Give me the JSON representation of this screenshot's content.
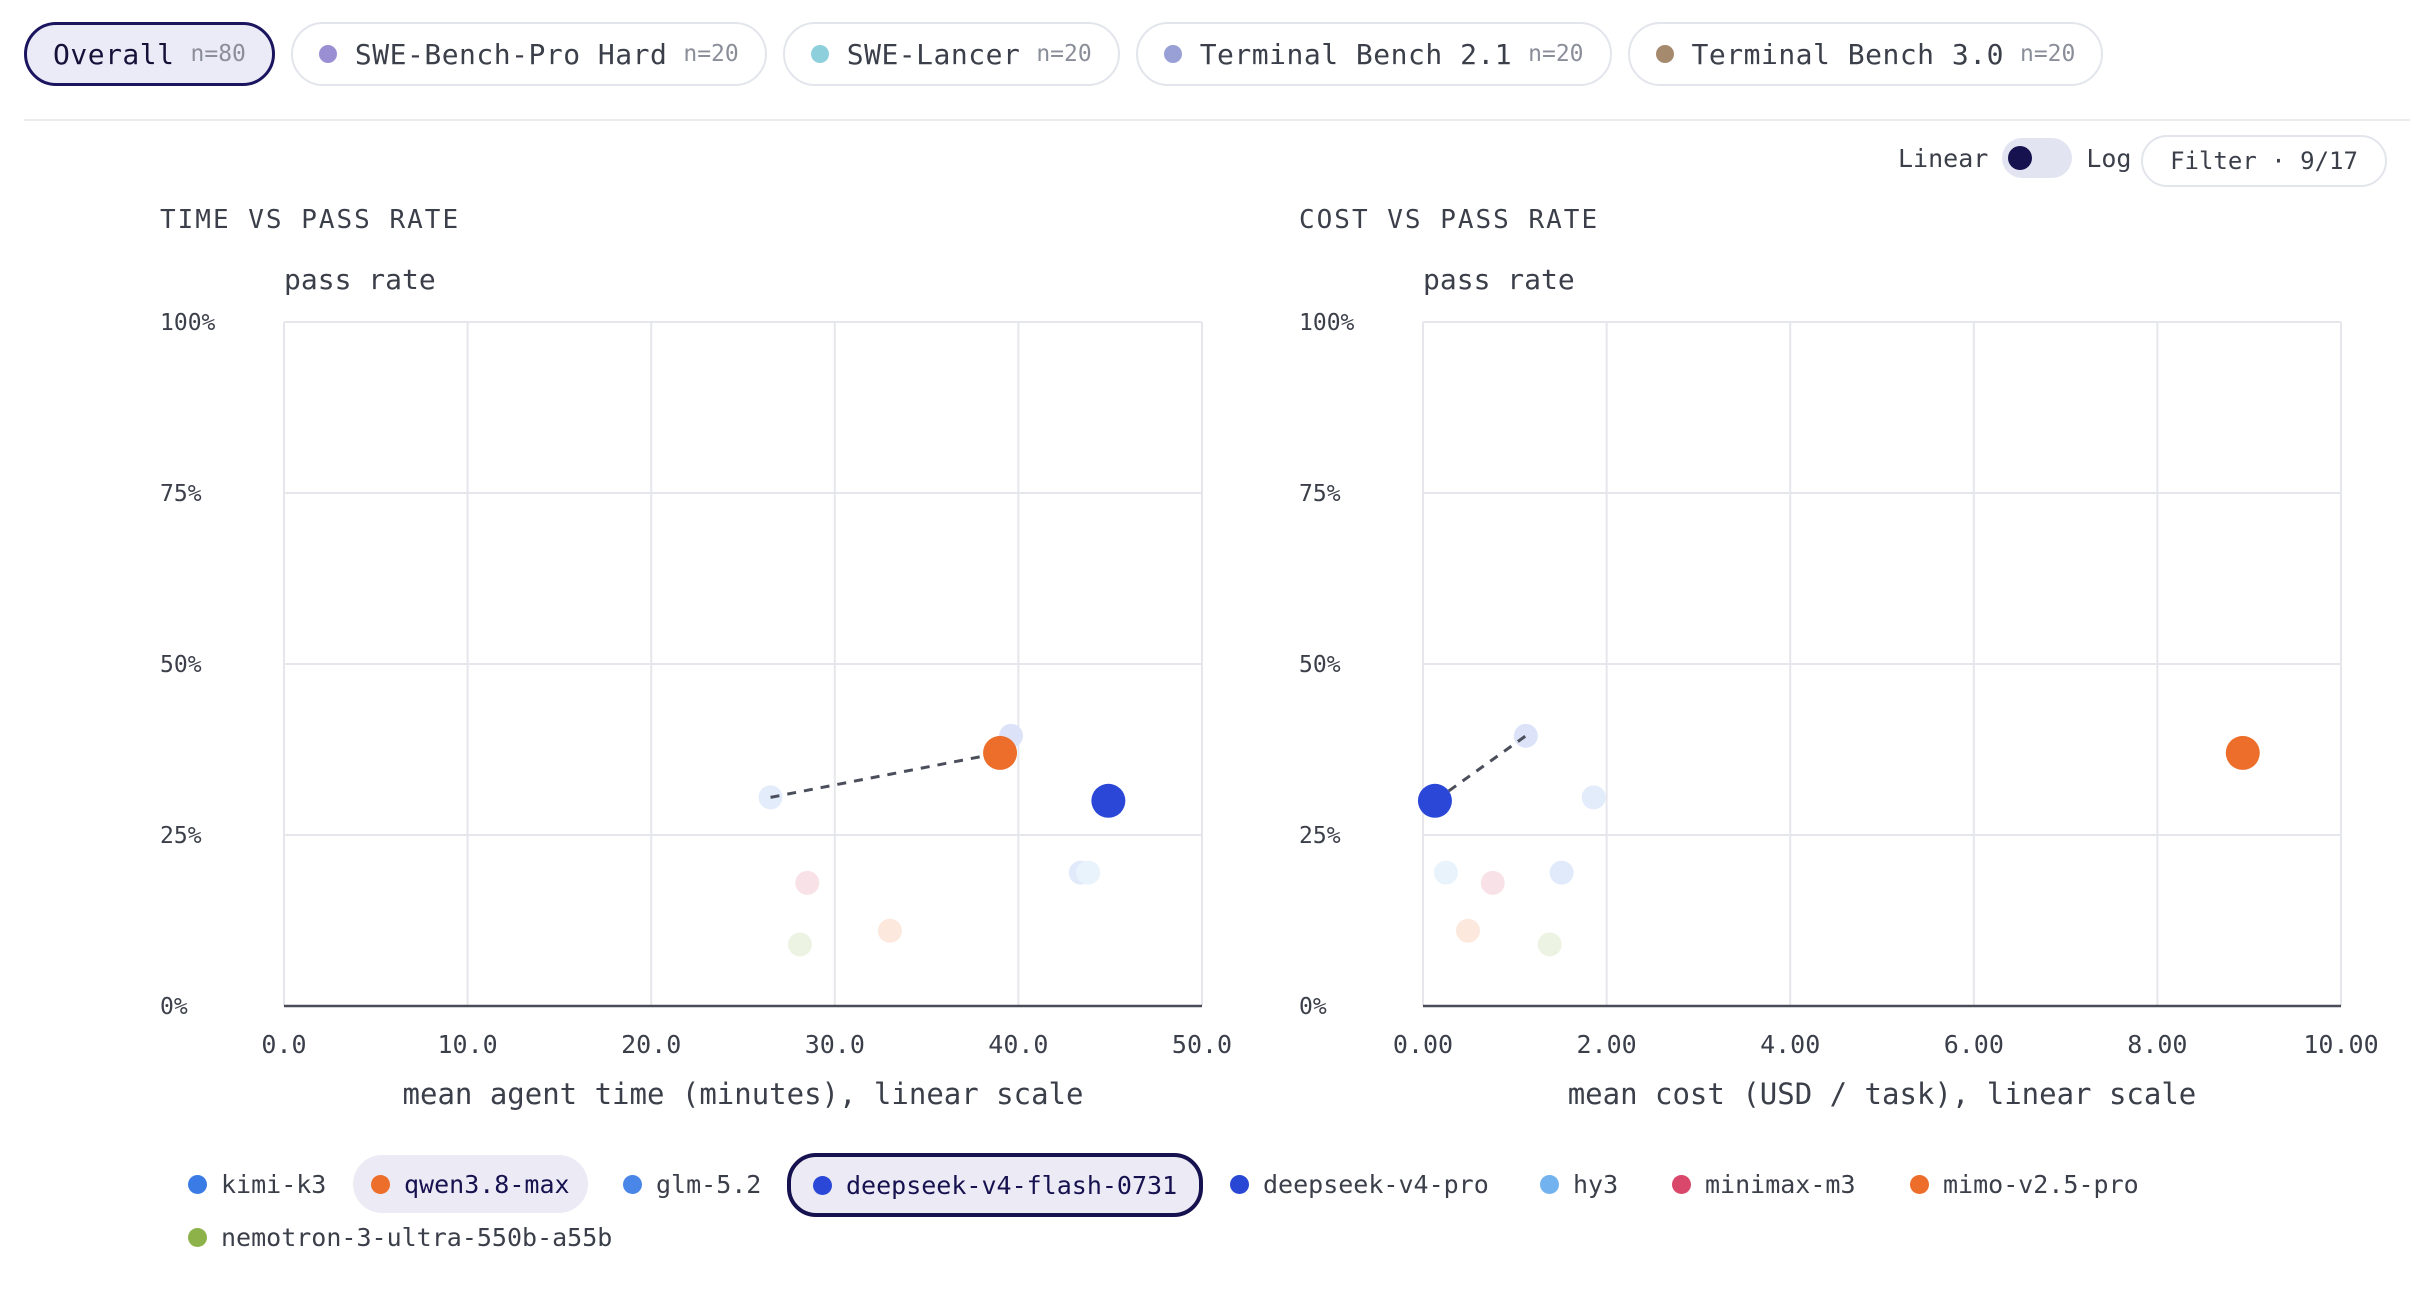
{
  "tabs": [
    {
      "label": "Overall",
      "count": "n=80",
      "active": true,
      "color": ""
    },
    {
      "label": "SWE-Bench-Pro Hard",
      "count": "n=20",
      "active": false,
      "color": "#9b8fd4"
    },
    {
      "label": "SWE-Lancer",
      "count": "n=20",
      "active": false,
      "color": "#8ecfdc"
    },
    {
      "label": "Terminal Bench 2.1",
      "count": "n=20",
      "active": false,
      "color": "#98a0d6"
    },
    {
      "label": "Terminal Bench 3.0",
      "count": "n=20",
      "active": false,
      "color": "#a58a6e"
    }
  ],
  "scale_toggle": {
    "left_label": "Linear",
    "right_label": "Log",
    "selected": "Linear"
  },
  "filter_label": "Filter · 9/17",
  "legend": [
    {
      "name": "kimi-k3",
      "color": "#3b7be6",
      "state": "normal"
    },
    {
      "name": "qwen3.8-max",
      "color": "#ec6e2a",
      "state": "highlighted"
    },
    {
      "name": "glm-5.2",
      "color": "#4a86e8",
      "state": "normal"
    },
    {
      "name": "deepseek-v4-flash-0731",
      "color": "#2b47d8",
      "state": "selected"
    },
    {
      "name": "deepseek-v4-pro",
      "color": "#2747d4",
      "state": "normal"
    },
    {
      "name": "hy3",
      "color": "#72b2ee",
      "state": "normal"
    },
    {
      "name": "minimax-m3",
      "color": "#d9476b",
      "state": "normal"
    },
    {
      "name": "mimo-v2.5-pro",
      "color": "#ec6e2a",
      "state": "normal"
    },
    {
      "name": "nemotron-3-ultra-550b-a55b",
      "color": "#8db24a",
      "state": "normal"
    }
  ],
  "chart_data": [
    {
      "type": "scatter",
      "title": "TIME VS PASS RATE",
      "ylabel": "pass rate",
      "xlabel": "mean agent time (minutes), linear scale",
      "xlim": [
        0,
        50
      ],
      "ylim": [
        0,
        100
      ],
      "x_ticks": [
        "0.0",
        "10.0",
        "20.0",
        "30.0",
        "40.0",
        "50.0"
      ],
      "y_ticks": [
        "0%",
        "25%",
        "50%",
        "75%",
        "100%"
      ],
      "grid": true,
      "points": [
        {
          "model": "kimi-k3",
          "x": 43.4,
          "y": 19.5,
          "emphasis": "faded"
        },
        {
          "model": "qwen3.8-max",
          "x": 39.0,
          "y": 37.0,
          "emphasis": "highlighted"
        },
        {
          "model": "glm-5.2",
          "x": 26.5,
          "y": 30.5,
          "emphasis": "faded"
        },
        {
          "model": "deepseek-v4-flash-0731",
          "x": 44.9,
          "y": 30.0,
          "emphasis": "selected"
        },
        {
          "model": "deepseek-v4-pro",
          "x": 39.6,
          "y": 39.5,
          "emphasis": "faded"
        },
        {
          "model": "hy3",
          "x": 43.8,
          "y": 19.5,
          "emphasis": "faded"
        },
        {
          "model": "minimax-m3",
          "x": 28.5,
          "y": 18.0,
          "emphasis": "faded"
        },
        {
          "model": "mimo-v2.5-pro",
          "x": 33.0,
          "y": 11.0,
          "emphasis": "faded"
        },
        {
          "model": "nemotron-3-ultra-550b-a55b",
          "x": 28.1,
          "y": 9.0,
          "emphasis": "faded"
        }
      ],
      "connector": {
        "from": "glm-5.2",
        "to": "qwen3.8-max",
        "style": "dashed"
      }
    },
    {
      "type": "scatter",
      "title": "COST VS PASS RATE",
      "ylabel": "pass rate",
      "xlabel": "mean cost (USD / task), linear scale",
      "xlim": [
        0,
        10
      ],
      "ylim": [
        0,
        100
      ],
      "x_ticks": [
        "0.00",
        "2.00",
        "4.00",
        "6.00",
        "8.00",
        "10.00"
      ],
      "y_ticks": [
        "0%",
        "25%",
        "50%",
        "75%",
        "100%"
      ],
      "grid": true,
      "points": [
        {
          "model": "kimi-k3",
          "x": 1.51,
          "y": 19.5,
          "emphasis": "faded"
        },
        {
          "model": "qwen3.8-max",
          "x": 8.93,
          "y": 37.0,
          "emphasis": "highlighted"
        },
        {
          "model": "glm-5.2",
          "x": 1.86,
          "y": 30.5,
          "emphasis": "faded"
        },
        {
          "model": "deepseek-v4-flash-0731",
          "x": 0.13,
          "y": 30.0,
          "emphasis": "selected"
        },
        {
          "model": "deepseek-v4-pro",
          "x": 1.12,
          "y": 39.5,
          "emphasis": "faded"
        },
        {
          "model": "hy3",
          "x": 0.25,
          "y": 19.5,
          "emphasis": "faded"
        },
        {
          "model": "minimax-m3",
          "x": 0.76,
          "y": 18.0,
          "emphasis": "faded"
        },
        {
          "model": "mimo-v2.5-pro",
          "x": 0.49,
          "y": 11.0,
          "emphasis": "faded"
        },
        {
          "model": "nemotron-3-ultra-550b-a55b",
          "x": 1.38,
          "y": 9.0,
          "emphasis": "faded"
        }
      ],
      "connector": {
        "from": "deepseek-v4-flash-0731",
        "to": "deepseek-v4-pro",
        "style": "dashed"
      }
    }
  ]
}
